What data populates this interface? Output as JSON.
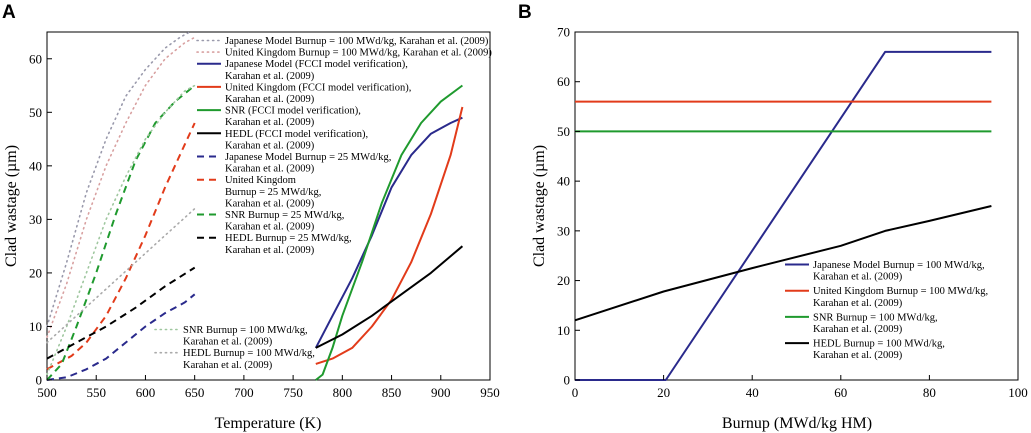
{
  "panels": [
    {
      "label": "A"
    },
    {
      "label": "B"
    }
  ],
  "chart_data": [
    {
      "type": "line",
      "panel": "A",
      "title": "",
      "xlabel": "Temperature (K)",
      "ylabel": "Clad wastage (µm)",
      "xlim": [
        500,
        950
      ],
      "ylim": [
        0,
        65
      ],
      "xticks": [
        500,
        550,
        600,
        650,
        700,
        750,
        800,
        850,
        900,
        950
      ],
      "yticks": [
        0,
        10,
        20,
        30,
        40,
        50,
        60
      ],
      "legend_location": "top-right",
      "series": [
        {
          "name": "Japanese Model Burnup = 100 MWd/kg, Karahan et al. (2009)",
          "lines": [
            "Japanese Model Burnup = 100 MWd/kg, Karahan et al. (2009)"
          ],
          "color": "#9a9aac",
          "style": "dotted",
          "x": [
            500,
            520,
            540,
            560,
            580,
            600,
            620,
            635,
            645
          ],
          "y": [
            10,
            22,
            35,
            45,
            53,
            58,
            62,
            64,
            65
          ]
        },
        {
          "name": "United Kingdom Burnup = 100 MWd/kg, Karahan et al. (2009)",
          "lines": [
            "United Kingdom Burnup = 100 MWd/kg, Karahan et al. (2009)"
          ],
          "color": "#d8a0a0",
          "style": "dotted",
          "x": [
            500,
            520,
            540,
            560,
            580,
            600,
            620,
            640,
            650
          ],
          "y": [
            8,
            18,
            30,
            40,
            48,
            55,
            60,
            63,
            64
          ]
        },
        {
          "name": "Japanese Model (FCCI model verification), Karahan et al. (2009)",
          "lines": [
            "Japanese Model (FCCI model verification),",
            "Karahan et al. (2009)"
          ],
          "color": "#2a2a8c",
          "style": "solid",
          "x": [
            773,
            790,
            810,
            830,
            850,
            870,
            890,
            910,
            922
          ],
          "y": [
            6,
            12,
            19,
            27,
            36,
            42,
            46,
            48,
            49
          ]
        },
        {
          "name": "United Kingdom (FCCI model verification), Karahan et al. (2009)",
          "lines": [
            "United Kingdom (FCCI model verification),",
            "Karahan et al. (2009)"
          ],
          "color": "#e23b1a",
          "style": "solid",
          "x": [
            773,
            790,
            810,
            830,
            850,
            870,
            890,
            910,
            922
          ],
          "y": [
            3,
            4,
            6,
            10,
            15,
            22,
            31,
            42,
            51
          ]
        },
        {
          "name": "SNR (FCCI model verification), Karahan et al. (2009)",
          "lines": [
            "SNR (FCCI model verification),",
            "Karahan et al. (2009)"
          ],
          "color": "#1f9a2e",
          "style": "solid",
          "x": [
            773,
            780,
            790,
            800,
            820,
            840,
            860,
            880,
            900,
            922
          ],
          "y": [
            0,
            1,
            6,
            12,
            22,
            33,
            42,
            48,
            52,
            55
          ]
        },
        {
          "name": "HEDL (FCCI model verification), Karahan et al. (2009)",
          "lines": [
            "HEDL (FCCI model verification),",
            "Karahan et al. (2009)"
          ],
          "color": "#000000",
          "style": "solid",
          "x": [
            773,
            800,
            830,
            860,
            890,
            922
          ],
          "y": [
            6,
            8.5,
            12,
            16,
            20,
            25
          ]
        },
        {
          "name": "Japanese Model Burnup = 25 MWd/kg, Karahan et al. (2009)",
          "lines": [
            "Japanese Model Burnup = 25 MWd/kg,",
            "Karahan et al. (2009)"
          ],
          "color": "#2a2a8c",
          "style": "dashed",
          "x": [
            500,
            520,
            540,
            560,
            580,
            600,
            620,
            640,
            650
          ],
          "y": [
            0,
            0.5,
            2,
            4,
            7,
            10,
            12.5,
            14.5,
            16
          ]
        },
        {
          "name": "United Kingdom Burnup = 25 MWd/kg, Karahan et al. (2009)",
          "lines": [
            "United Kingdom",
            "Burnup = 25 MWd/kg,",
            "Karahan et al. (2009)"
          ],
          "color": "#e23b1a",
          "style": "dashed",
          "x": [
            500,
            510,
            525,
            540,
            560,
            580,
            600,
            620,
            640,
            650
          ],
          "y": [
            2,
            3,
            4.5,
            7,
            12,
            19,
            27,
            36,
            44,
            48
          ]
        },
        {
          "name": "SNR Burnup = 25 MWd/kg, Karahan et al. (2009)",
          "lines": [
            "SNR Burnup = 25 MWd/kg,",
            "Karahan et al. (2009)"
          ],
          "color": "#1f9a2e",
          "style": "dashed",
          "x": [
            500,
            515,
            530,
            550,
            570,
            590,
            610,
            630,
            650
          ],
          "y": [
            0,
            3,
            10,
            20,
            31,
            41,
            48,
            52,
            55
          ]
        },
        {
          "name": "HEDL Burnup = 25 MWd/kg, Karahan et al. (2009)",
          "lines": [
            "HEDL Burnup = 25 MWd/kg,",
            "Karahan et al. (2009)"
          ],
          "color": "#000000",
          "style": "dashed",
          "x": [
            500,
            530,
            560,
            590,
            620,
            650
          ],
          "y": [
            4,
            7,
            10,
            13.5,
            17.5,
            21
          ]
        },
        {
          "name": "SNR Burnup = 100 MWd/kg, Karahan et al. (2009)",
          "lines": [
            "SNR Burnup = 100 MWd/kg,",
            "Karahan et al. (2009)"
          ],
          "color": "#9fc79f",
          "style": "dotted",
          "x": [
            500,
            520,
            540,
            560,
            580,
            600,
            620,
            640,
            650
          ],
          "y": [
            1,
            10,
            20,
            30,
            38,
            45,
            50,
            54,
            55
          ]
        },
        {
          "name": "HEDL Burnup = 100 MWd/kg, Karahan et al. (2009)",
          "lines": [
            "HEDL Burnup = 100 MWd/kg,",
            "Karahan et al. (2009)"
          ],
          "color": "#aaaaaa",
          "style": "dotted",
          "x": [
            500,
            530,
            560,
            590,
            620,
            650
          ],
          "y": [
            7,
            12,
            17,
            22,
            27,
            32
          ]
        }
      ]
    },
    {
      "type": "line",
      "panel": "B",
      "title": "",
      "xlabel": "Burnup (MWd/kg HM)",
      "ylabel": "Clad wastage (µm)",
      "xlim": [
        0,
        100
      ],
      "ylim": [
        0,
        70
      ],
      "xticks": [
        0,
        20,
        40,
        60,
        80,
        100
      ],
      "yticks": [
        0,
        10,
        20,
        30,
        40,
        50,
        60,
        70
      ],
      "legend_location": "bottom-right",
      "series": [
        {
          "name": "Japanese Model Burnup = 100 MWd/kg, Karahan et al. (2009)",
          "lines": [
            "Japanese Model Burnup = 100 MWd/kg,",
            "Karahan et al. (2009)"
          ],
          "color": "#2a2a8c",
          "style": "solid",
          "x": [
            0,
            20.5,
            70,
            94
          ],
          "y": [
            0,
            0,
            66,
            66
          ]
        },
        {
          "name": "United Kingdom Burnup = 100 MWd/kg, Karahan et al. (2009)",
          "lines": [
            "United Kingdom Burnup = 100 MWd/kg,",
            "Karahan et al. (2009)"
          ],
          "color": "#e23b1a",
          "style": "solid",
          "x": [
            0,
            94
          ],
          "y": [
            56,
            56
          ]
        },
        {
          "name": "SNR Burnup = 100 MWd/kg, Karahan et al. (2009)",
          "lines": [
            "SNR Burnup = 100 MWd/kg,",
            "Karahan et al. (2009)"
          ],
          "color": "#1f9a2e",
          "style": "solid",
          "x": [
            0,
            94
          ],
          "y": [
            50,
            50
          ]
        },
        {
          "name": "HEDL Burnup = 100 MWd/kg, Karahan et al. (2009)",
          "lines": [
            "HEDL Burnup = 100 MWd/kg,",
            "Karahan et al. (2009)"
          ],
          "color": "#000000",
          "style": "solid",
          "x": [
            0,
            20,
            40,
            60,
            70,
            80,
            94
          ],
          "y": [
            12,
            17.8,
            22.5,
            27,
            30,
            32,
            35
          ]
        }
      ]
    }
  ]
}
